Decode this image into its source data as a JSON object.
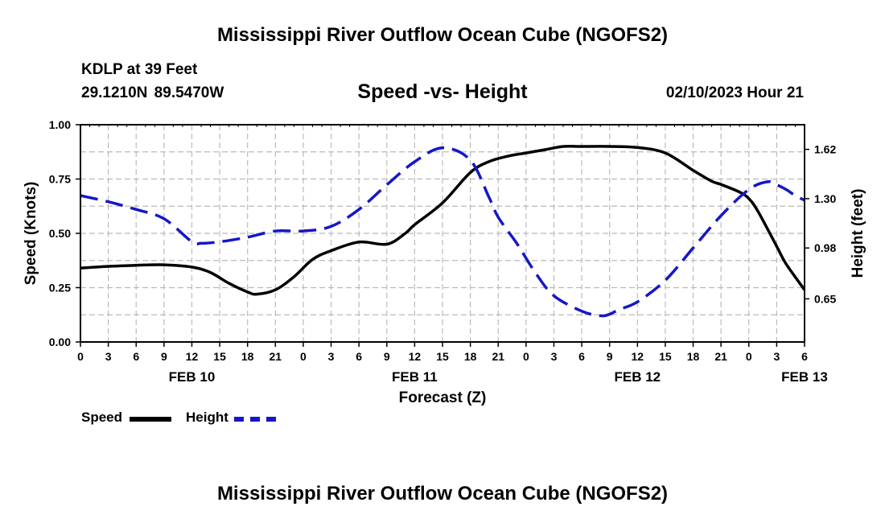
{
  "header": {
    "title": "Mississippi River Outflow Ocean Cube (NGOFS2)",
    "station": "KDLP at 39 Feet",
    "coordinates": "29.1210N  89.5470W",
    "subtitle": "Speed -vs- Height",
    "datetime": "02/10/2023 Hour 21"
  },
  "footer": {
    "title": "Mississippi River Outflow Ocean Cube (NGOFS2)"
  },
  "legend": {
    "speed_label": "Speed",
    "height_label": "Height"
  },
  "colors": {
    "speed": "#000000",
    "height": "#1616c8",
    "grid": "#bbbbbb"
  },
  "chart_data": {
    "type": "line",
    "title": "Speed -vs- Height",
    "xlabel": "Forecast (Z)",
    "ylabel": "Speed (Knots)",
    "y2label": "Height (feet)",
    "x_ticks": [
      0,
      3,
      6,
      9,
      12,
      15,
      18,
      21,
      24,
      27,
      30,
      33,
      36,
      39,
      42,
      45,
      48,
      51,
      54,
      57,
      60,
      63,
      66,
      69,
      72,
      75,
      78
    ],
    "x_tick_labels": [
      "0",
      "3",
      "6",
      "9",
      "12",
      "15",
      "18",
      "21",
      "0",
      "3",
      "6",
      "9",
      "12",
      "15",
      "18",
      "21",
      "0",
      "3",
      "6",
      "9",
      "12",
      "15",
      "18",
      "21",
      "0",
      "3",
      "6"
    ],
    "date_labels": [
      {
        "label": "FEB 10",
        "hour": 12
      },
      {
        "label": "FEB 11",
        "hour": 36
      },
      {
        "label": "FEB 12",
        "hour": 60
      },
      {
        "label": "FEB 13",
        "hour": 78
      }
    ],
    "xlim": [
      0,
      78
    ],
    "ylim": [
      0,
      1.0
    ],
    "y_ticks": [
      0.0,
      0.25,
      0.5,
      0.75,
      1.0
    ],
    "y_tick_labels": [
      "0.00",
      "0.25",
      "0.50",
      "0.75",
      "1.00"
    ],
    "y2lim": [
      0.37,
      1.78
    ],
    "y2_ticks": [
      0.65,
      0.98,
      1.3,
      1.62
    ],
    "y2_tick_labels": [
      "0.65",
      "0.98",
      "1.30",
      "1.62"
    ],
    "series": [
      {
        "name": "Speed",
        "axis": "left",
        "style": "solid",
        "x": [
          0,
          3,
          6,
          9,
          12,
          14,
          16,
          18,
          19,
          21,
          23,
          25,
          27,
          30,
          33,
          35,
          36,
          39,
          42,
          44,
          46,
          48,
          50,
          52,
          54,
          57,
          60,
          63,
          66,
          68,
          69,
          71,
          72,
          73,
          75,
          76,
          78
        ],
        "y": [
          0.34,
          0.348,
          0.353,
          0.355,
          0.345,
          0.32,
          0.27,
          0.23,
          0.22,
          0.24,
          0.3,
          0.38,
          0.42,
          0.46,
          0.45,
          0.5,
          0.54,
          0.64,
          0.78,
          0.83,
          0.855,
          0.87,
          0.885,
          0.9,
          0.9,
          0.9,
          0.895,
          0.87,
          0.79,
          0.74,
          0.725,
          0.69,
          0.66,
          0.6,
          0.44,
          0.36,
          0.24
        ]
      },
      {
        "name": "Height",
        "axis": "right",
        "style": "dashed",
        "x": [
          0,
          3,
          6,
          9,
          12,
          13,
          15,
          18,
          21,
          24,
          27,
          30,
          33,
          36,
          39,
          42,
          44,
          45,
          47,
          49,
          51,
          54,
          56,
          57,
          58,
          60,
          63,
          66,
          69,
          72,
          74,
          75,
          76,
          77,
          78
        ],
        "y": [
          1.32,
          1.28,
          1.23,
          1.17,
          1.02,
          1.01,
          1.02,
          1.05,
          1.09,
          1.09,
          1.12,
          1.23,
          1.39,
          1.54,
          1.63,
          1.55,
          1.31,
          1.18,
          1.01,
          0.82,
          0.67,
          0.57,
          0.54,
          0.55,
          0.58,
          0.63,
          0.77,
          0.98,
          1.19,
          1.36,
          1.41,
          1.39,
          1.36,
          1.32,
          1.29
        ]
      }
    ]
  }
}
